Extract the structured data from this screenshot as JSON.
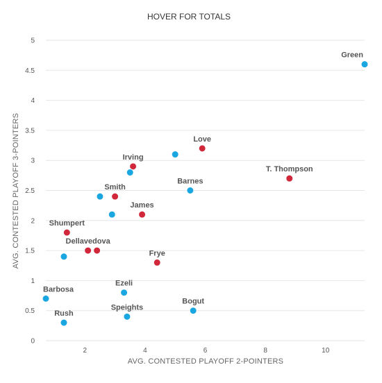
{
  "chart_data": {
    "type": "scatter",
    "title": "HOVER FOR TOTALS",
    "xlabel": "AVG. CONTESTED PLAYOFF 2-POINTERS",
    "ylabel": "AVG. CONTESTED PLAYOFF 3-POINTERS",
    "xlim": [
      0.7,
      11.3
    ],
    "ylim": [
      0,
      5
    ],
    "xticks": [
      2,
      4,
      6,
      8,
      10
    ],
    "yticks": [
      0,
      0.5,
      1,
      1.5,
      2,
      2.5,
      3,
      3.5,
      4,
      4.5,
      5
    ],
    "grid": "horizontal",
    "legend": "none",
    "colors": {
      "cyan": "#1aa6e0",
      "red": "#d0283a"
    },
    "points": [
      {
        "label": "Green",
        "x": 11.3,
        "y": 4.6,
        "color": "cyan",
        "label_pos": "above-left"
      },
      {
        "label": "",
        "x": 5.0,
        "y": 3.1,
        "color": "cyan"
      },
      {
        "label": "Love",
        "x": 5.9,
        "y": 3.2,
        "color": "red",
        "label_pos": "above"
      },
      {
        "label": "T. Thompson",
        "x": 8.8,
        "y": 2.7,
        "color": "red",
        "label_pos": "above"
      },
      {
        "label": "Irving",
        "x": 3.6,
        "y": 2.9,
        "color": "red",
        "label_pos": "above"
      },
      {
        "label": "",
        "x": 3.5,
        "y": 2.8,
        "color": "cyan"
      },
      {
        "label": "Barnes",
        "x": 5.5,
        "y": 2.5,
        "color": "cyan",
        "label_pos": "above"
      },
      {
        "label": "",
        "x": 2.5,
        "y": 2.4,
        "color": "cyan"
      },
      {
        "label": "Smith",
        "x": 3.0,
        "y": 2.4,
        "color": "red",
        "label_pos": "above"
      },
      {
        "label": "",
        "x": 2.9,
        "y": 2.1,
        "color": "cyan"
      },
      {
        "label": "James",
        "x": 3.9,
        "y": 2.1,
        "color": "red",
        "label_pos": "above"
      },
      {
        "label": "Shumpert",
        "x": 1.4,
        "y": 1.8,
        "color": "red",
        "label_pos": "above"
      },
      {
        "label": "Dellavedova",
        "x": 2.1,
        "y": 1.5,
        "color": "red",
        "label_pos": "above"
      },
      {
        "label": "",
        "x": 2.4,
        "y": 1.5,
        "color": "red"
      },
      {
        "label": "",
        "x": 1.3,
        "y": 1.4,
        "color": "cyan"
      },
      {
        "label": "Frye",
        "x": 4.4,
        "y": 1.3,
        "color": "red",
        "label_pos": "above"
      },
      {
        "label": "Ezeli",
        "x": 3.3,
        "y": 0.8,
        "color": "cyan",
        "label_pos": "above"
      },
      {
        "label": "Barbosa",
        "x": 0.7,
        "y": 0.7,
        "color": "cyan",
        "label_pos": "above-right"
      },
      {
        "label": "Bogut",
        "x": 5.6,
        "y": 0.5,
        "color": "cyan",
        "label_pos": "above"
      },
      {
        "label": "Speights",
        "x": 3.4,
        "y": 0.4,
        "color": "cyan",
        "label_pos": "above"
      },
      {
        "label": "Rush",
        "x": 1.3,
        "y": 0.3,
        "color": "cyan",
        "label_pos": "above"
      }
    ]
  }
}
